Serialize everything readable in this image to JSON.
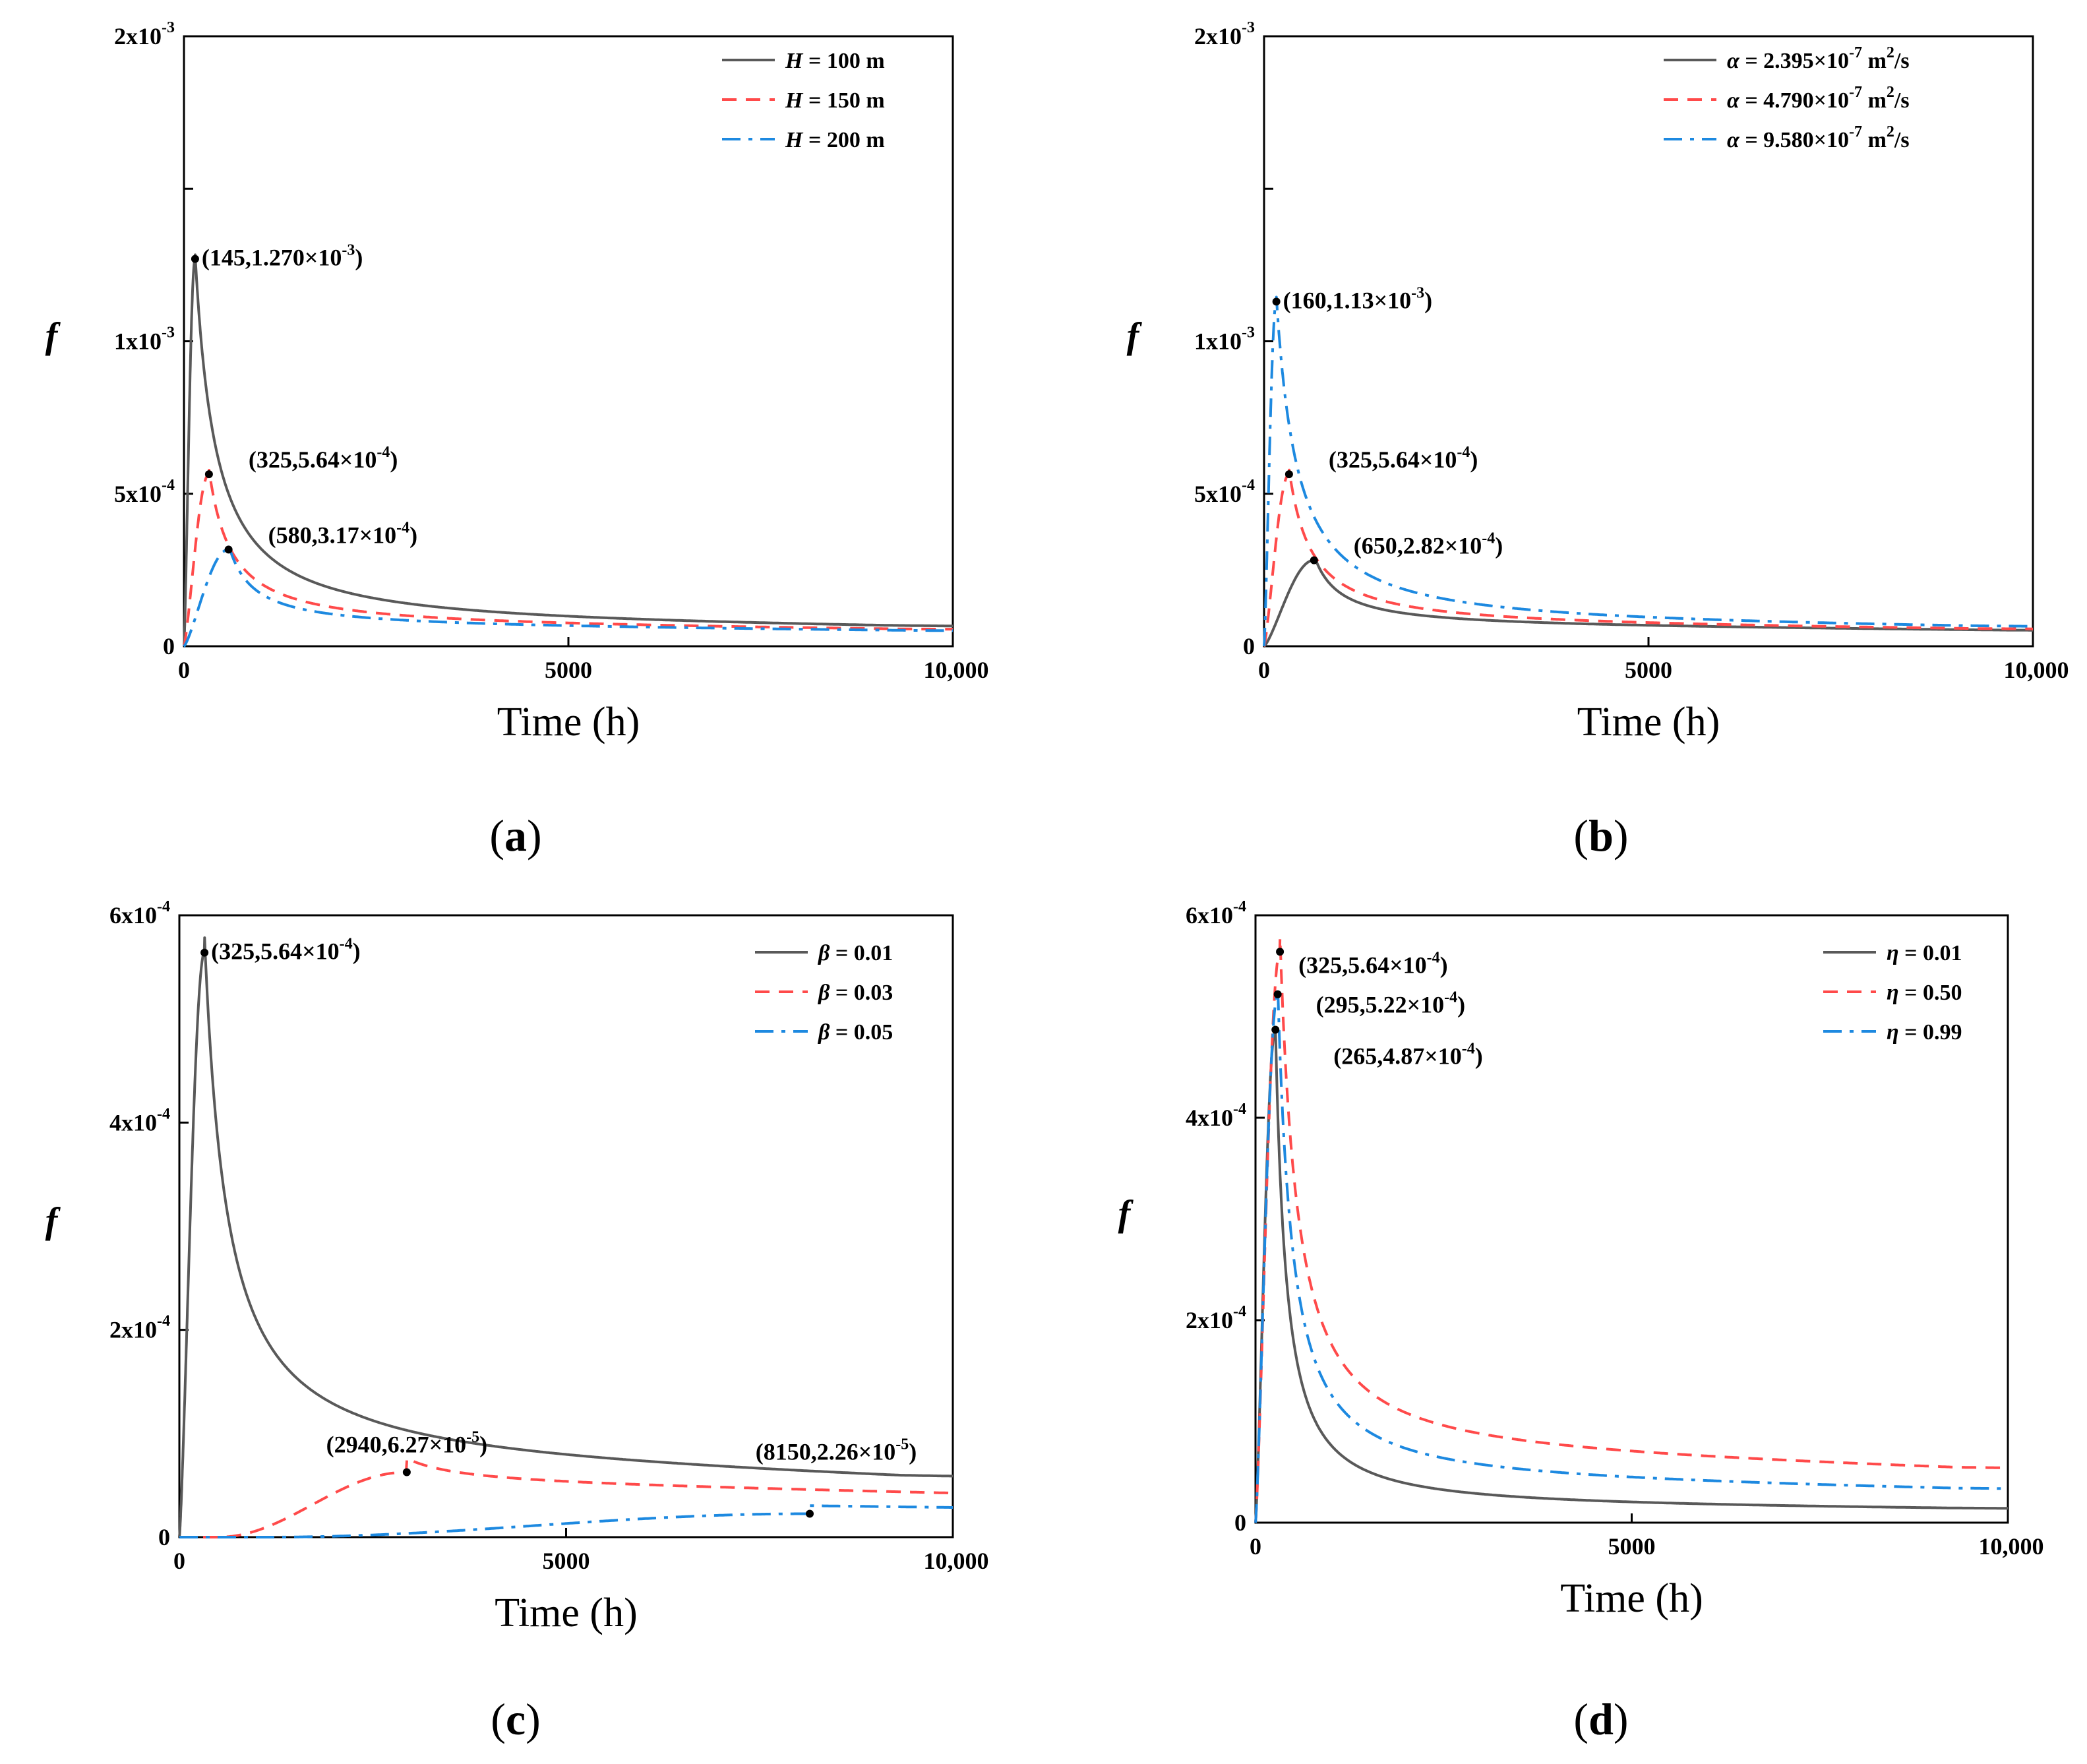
{
  "figure": {
    "panels_label": "f vs Time"
  },
  "chart_data": [
    {
      "id": "a",
      "type": "line",
      "panel_label": "a",
      "xlabel": "Time (h)",
      "ylabel": "f",
      "xlim": [
        0,
        10000
      ],
      "ylim": [
        0,
        0.002
      ],
      "x_ticks": [
        {
          "value": 0,
          "label": "0"
        },
        {
          "value": 5000,
          "label": "5000"
        },
        {
          "value": 10000,
          "label": "10,000"
        }
      ],
      "y_ticks": [
        {
          "value": 0,
          "label": "0"
        },
        {
          "value": 0.0005,
          "label": "5x10",
          "exp": "-4"
        },
        {
          "value": 0.001,
          "label": "1x10",
          "exp": "-3"
        },
        {
          "value": 0.0015,
          "label": "",
          "exp": ""
        },
        {
          "value": 0.002,
          "label": "2x10",
          "exp": "-3"
        }
      ],
      "legend_position": "top-right",
      "series": [
        {
          "name": "H",
          "label_symbol": "H",
          "label_rest": " = 100 m",
          "color": "#595959",
          "dash": "solid",
          "peak": [
            145,
            0.00127
          ],
          "tail": 4.6e-05,
          "rise": 1.0,
          "tau": 2600,
          "alpha": 0.9,
          "beta": 0.55
        },
        {
          "name": "H",
          "label_symbol": "H",
          "label_rest": " = 150 m",
          "color": "#ff4a4a",
          "dash": "dash",
          "peak": [
            325,
            0.000564
          ],
          "tail": 4.5e-05,
          "rise": 1.0,
          "tau": 2700,
          "alpha": 0.85,
          "beta": 0.55
        },
        {
          "name": "H",
          "label_symbol": "H",
          "label_rest": " = 200 m",
          "color": "#1d89e0",
          "dash": "dashdot",
          "peak": [
            580,
            0.000317
          ],
          "tail": 4.4e-05,
          "rise": 1.0,
          "tau": 2800,
          "alpha": 0.8,
          "beta": 0.55
        }
      ],
      "annotations": [
        {
          "x": 145,
          "y": 0.00127,
          "text": "(145,1.270×10",
          "exp": "-3",
          "close": ")",
          "anchor": "right"
        },
        {
          "x": 325,
          "y": 0.000564,
          "text": "(325,5.64×10",
          "exp": "-4",
          "close": ")",
          "anchor": "right-up"
        },
        {
          "x": 580,
          "y": 0.000317,
          "text": "(580,3.17×10",
          "exp": "-4",
          "close": ")",
          "anchor": "right-up"
        }
      ]
    },
    {
      "id": "b",
      "type": "line",
      "panel_label": "b",
      "xlabel": "Time (h)",
      "ylabel": "f",
      "xlim": [
        0,
        10000
      ],
      "ylim": [
        0,
        0.002
      ],
      "x_ticks": [
        {
          "value": 0,
          "label": "0"
        },
        {
          "value": 5000,
          "label": "5000"
        },
        {
          "value": 10000,
          "label": "10,000"
        }
      ],
      "y_ticks": [
        {
          "value": 0,
          "label": "0"
        },
        {
          "value": 0.0005,
          "label": "5x10",
          "exp": "-4"
        },
        {
          "value": 0.001,
          "label": "1x10",
          "exp": "-3"
        },
        {
          "value": 0.0015,
          "label": "",
          "exp": ""
        },
        {
          "value": 0.002,
          "label": "2x10",
          "exp": "-3"
        }
      ],
      "legend_position": "top-right",
      "series": [
        {
          "name": "alpha",
          "label_symbol": "α",
          "label_rest": " = 2.395×10",
          "label_exp": "-7",
          "label_unit": " m",
          "label_unit_exp": "2",
          "label_tail": "/s",
          "color": "#595959",
          "dash": "solid",
          "peak": [
            650,
            0.000282
          ],
          "tail": 4.6e-05,
          "rise": 1.0,
          "tau": 2900,
          "alpha": 0.8,
          "beta": 0.55
        },
        {
          "name": "alpha",
          "label_symbol": "α",
          "label_rest": " = 4.790×10",
          "label_exp": "-7",
          "label_unit": " m",
          "label_unit_exp": "2",
          "label_tail": "/s",
          "color": "#ff4a4a",
          "dash": "dash",
          "peak": [
            325,
            0.000564
          ],
          "tail": 4.6e-05,
          "rise": 1.0,
          "tau": 2700,
          "alpha": 0.85,
          "beta": 0.55
        },
        {
          "name": "alpha",
          "label_symbol": "α",
          "label_rest": " = 9.580×10",
          "label_exp": "-7",
          "label_unit": " m",
          "label_unit_exp": "2",
          "label_tail": "/s",
          "color": "#1d89e0",
          "dash": "dashdot",
          "peak": [
            160,
            0.00113
          ],
          "tail": 4.7e-05,
          "rise": 1.0,
          "tau": 2650,
          "alpha": 0.9,
          "beta": 0.55
        }
      ],
      "annotations": [
        {
          "x": 160,
          "y": 0.00113,
          "text": "(160,1.13×10",
          "exp": "-3",
          "close": ")",
          "anchor": "right"
        },
        {
          "x": 325,
          "y": 0.000564,
          "text": "(325,5.64×10",
          "exp": "-4",
          "close": ")",
          "anchor": "right-up"
        },
        {
          "x": 650,
          "y": 0.000282,
          "text": "(650,2.82×10",
          "exp": "-4",
          "close": ")",
          "anchor": "right-up"
        }
      ]
    },
    {
      "id": "c",
      "type": "line",
      "panel_label": "c",
      "xlabel": "Time (h)",
      "ylabel": "f",
      "xlim": [
        0,
        10000
      ],
      "ylim": [
        0,
        0.0006
      ],
      "x_ticks": [
        {
          "value": 0,
          "label": "0"
        },
        {
          "value": 5000,
          "label": "5000"
        },
        {
          "value": 10000,
          "label": "10,000"
        }
      ],
      "y_ticks": [
        {
          "value": 0,
          "label": "0"
        },
        {
          "value": 0.0002,
          "label": "2x10",
          "exp": "-4"
        },
        {
          "value": 0.0004,
          "label": "4x10",
          "exp": "-4"
        },
        {
          "value": 0.0006,
          "label": "6x10",
          "exp": "-4"
        }
      ],
      "legend_position": "top-right",
      "series": [
        {
          "name": "beta",
          "label_symbol": "β",
          "label_rest": " = 0.01",
          "color": "#595959",
          "dash": "solid",
          "peak": [
            325,
            0.000564
          ],
          "tail": 4.8e-05,
          "rise": 1.0,
          "tau": 2700,
          "alpha": 0.85,
          "beta": 0.55
        },
        {
          "name": "beta",
          "label_symbol": "β",
          "label_rest": " = 0.03",
          "color": "#ff4a4a",
          "dash": "dash",
          "peak": [
            2940,
            6.27e-05
          ],
          "tail": 3.8e-05,
          "onset": 500,
          "rise": 2.2,
          "tau": 7000,
          "alpha": 0.9,
          "beta": 0.6
        },
        {
          "name": "beta",
          "label_symbol": "β",
          "label_rest": " = 0.05",
          "color": "#1d89e0",
          "dash": "dashdot",
          "peak": [
            8150,
            2.26e-05
          ],
          "tail": 2.22e-05,
          "onset": 1100,
          "rise": 2.4,
          "tau": 30000,
          "alpha": 0.9,
          "beta": 0.6
        }
      ],
      "annotations": [
        {
          "x": 325,
          "y": 0.000564,
          "text": "(325,5.64×10",
          "exp": "-4",
          "close": ")",
          "anchor": "right"
        },
        {
          "x": 2940,
          "y": 6.27e-05,
          "text": "(2940,6.27×10",
          "exp": "-5",
          "close": ")",
          "anchor": "above"
        },
        {
          "x": 8150,
          "y": 2.26e-05,
          "text": "(8150,2.26×10",
          "exp": "-5",
          "close": ")",
          "anchor": "above-far"
        }
      ]
    },
    {
      "id": "d",
      "type": "line",
      "panel_label": "d",
      "xlabel": "Time (h)",
      "ylabel": "f",
      "xlim": [
        0,
        10000
      ],
      "ylim": [
        0,
        0.0006
      ],
      "x_ticks": [
        {
          "value": 0,
          "label": "0"
        },
        {
          "value": 5000,
          "label": "5000"
        },
        {
          "value": 10000,
          "label": "10,000"
        }
      ],
      "y_ticks": [
        {
          "value": 0,
          "label": "0"
        },
        {
          "value": 0.0002,
          "label": "2x10",
          "exp": "-4"
        },
        {
          "value": 0.0004,
          "label": "4x10",
          "exp": "-4"
        },
        {
          "value": 0.0006,
          "label": "6x10",
          "exp": "-4"
        }
      ],
      "legend_position": "top-right",
      "series": [
        {
          "name": "eta",
          "label_symbol": "η",
          "label_rest": " = 0.01",
          "color": "#595959",
          "dash": "solid",
          "peak": [
            265,
            0.000487
          ],
          "tail": 1.1e-05,
          "rise": 1.0,
          "tau": 1500,
          "alpha": 0.95,
          "beta": 0.6
        },
        {
          "name": "eta",
          "label_symbol": "η",
          "label_rest": " = 0.50",
          "color": "#ff4a4a",
          "dash": "dash",
          "peak": [
            325,
            0.000564
          ],
          "tail": 4.8e-05,
          "rise": 1.0,
          "tau": 2400,
          "alpha": 0.95,
          "beta": 0.6
        },
        {
          "name": "eta",
          "label_symbol": "η",
          "label_rest": " = 0.99",
          "color": "#1d89e0",
          "dash": "dashdot",
          "peak": [
            295,
            0.000522
          ],
          "tail": 2.9e-05,
          "rise": 1.0,
          "tau": 2000,
          "alpha": 0.95,
          "beta": 0.6
        }
      ],
      "annotations": [
        {
          "x": 325,
          "y": 0.000564,
          "text": "(325,5.64×10",
          "exp": "-4",
          "close": ")",
          "anchor": "right-d1"
        },
        {
          "x": 295,
          "y": 0.000522,
          "text": "(295,5.22×10",
          "exp": "-4",
          "close": ")",
          "anchor": "right-d2"
        },
        {
          "x": 265,
          "y": 0.000487,
          "text": "(265,4.87×10",
          "exp": "-4",
          "close": ")",
          "anchor": "right-d3"
        }
      ]
    }
  ]
}
